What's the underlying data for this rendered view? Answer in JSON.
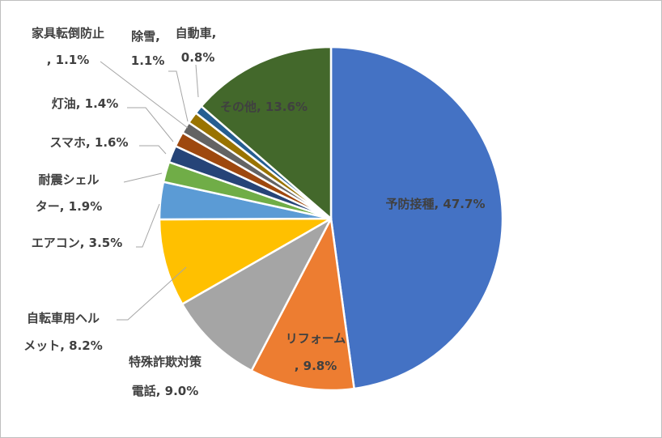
{
  "chart_data": {
    "type": "pie",
    "title": "",
    "start_angle_deg": 0,
    "direction": "clockwise",
    "slices": [
      {
        "label": "予防接種",
        "value": 47.7,
        "display": "予防接種, 47.7%",
        "color": "#4472C4"
      },
      {
        "label": "リフォーム",
        "value": 9.8,
        "display": "リフォーム, 9.8%",
        "color": "#ED7D31"
      },
      {
        "label": "特殊詐欺対策電話",
        "value": 9.0,
        "display": "特殊詐欺対策電話, 9.0%",
        "color": "#A5A5A5"
      },
      {
        "label": "自転車用ヘルメット",
        "value": 8.2,
        "display": "自転車用ヘルメット, 8.2%",
        "color": "#FFC000"
      },
      {
        "label": "エアコン",
        "value": 3.5,
        "display": "エアコン, 3.5%",
        "color": "#5B9BD5"
      },
      {
        "label": "耐震シェルター",
        "value": 1.9,
        "display": "耐震シェルター, 1.9%",
        "color": "#70AD47"
      },
      {
        "label": "スマホ",
        "value": 1.6,
        "display": "スマホ, 1.6%",
        "color": "#264478"
      },
      {
        "label": "灯油",
        "value": 1.4,
        "display": "灯油, 1.4%",
        "color": "#9E480E"
      },
      {
        "label": "家具転倒防止",
        "value": 1.1,
        "display": "家具転倒防止, 1.1%",
        "color": "#636363"
      },
      {
        "label": "除雪",
        "value": 1.1,
        "display": "除雪, 1.1%",
        "color": "#997300"
      },
      {
        "label": "自動車",
        "value": 0.8,
        "display": "自動車, 0.8%",
        "color": "#255E91"
      },
      {
        "label": "その他",
        "value": 13.6,
        "display": "その他, 13.6%",
        "color": "#43682B"
      }
    ]
  }
}
